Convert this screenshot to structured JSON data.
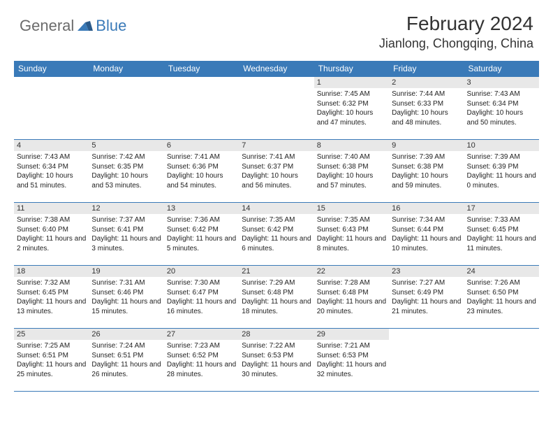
{
  "logo": {
    "text_general": "General",
    "text_blue": "Blue",
    "mark_color": "#3a7ab8"
  },
  "title": {
    "month_year": "February 2024",
    "location": "Jianlong, Chongqing, China"
  },
  "colors": {
    "header_bg": "#3a7ab8",
    "header_text": "#ffffff",
    "day_number_bg": "#e8e8e8",
    "border": "#3a7ab8",
    "body_text": "#222222",
    "title_text": "#333333"
  },
  "weekdays": [
    "Sunday",
    "Monday",
    "Tuesday",
    "Wednesday",
    "Thursday",
    "Friday",
    "Saturday"
  ],
  "weeks": [
    [
      null,
      null,
      null,
      null,
      {
        "d": "1",
        "sr": "7:45 AM",
        "ss": "6:32 PM",
        "dl": "10 hours and 47 minutes."
      },
      {
        "d": "2",
        "sr": "7:44 AM",
        "ss": "6:33 PM",
        "dl": "10 hours and 48 minutes."
      },
      {
        "d": "3",
        "sr": "7:43 AM",
        "ss": "6:34 PM",
        "dl": "10 hours and 50 minutes."
      }
    ],
    [
      {
        "d": "4",
        "sr": "7:43 AM",
        "ss": "6:34 PM",
        "dl": "10 hours and 51 minutes."
      },
      {
        "d": "5",
        "sr": "7:42 AM",
        "ss": "6:35 PM",
        "dl": "10 hours and 53 minutes."
      },
      {
        "d": "6",
        "sr": "7:41 AM",
        "ss": "6:36 PM",
        "dl": "10 hours and 54 minutes."
      },
      {
        "d": "7",
        "sr": "7:41 AM",
        "ss": "6:37 PM",
        "dl": "10 hours and 56 minutes."
      },
      {
        "d": "8",
        "sr": "7:40 AM",
        "ss": "6:38 PM",
        "dl": "10 hours and 57 minutes."
      },
      {
        "d": "9",
        "sr": "7:39 AM",
        "ss": "6:38 PM",
        "dl": "10 hours and 59 minutes."
      },
      {
        "d": "10",
        "sr": "7:39 AM",
        "ss": "6:39 PM",
        "dl": "11 hours and 0 minutes."
      }
    ],
    [
      {
        "d": "11",
        "sr": "7:38 AM",
        "ss": "6:40 PM",
        "dl": "11 hours and 2 minutes."
      },
      {
        "d": "12",
        "sr": "7:37 AM",
        "ss": "6:41 PM",
        "dl": "11 hours and 3 minutes."
      },
      {
        "d": "13",
        "sr": "7:36 AM",
        "ss": "6:42 PM",
        "dl": "11 hours and 5 minutes."
      },
      {
        "d": "14",
        "sr": "7:35 AM",
        "ss": "6:42 PM",
        "dl": "11 hours and 6 minutes."
      },
      {
        "d": "15",
        "sr": "7:35 AM",
        "ss": "6:43 PM",
        "dl": "11 hours and 8 minutes."
      },
      {
        "d": "16",
        "sr": "7:34 AM",
        "ss": "6:44 PM",
        "dl": "11 hours and 10 minutes."
      },
      {
        "d": "17",
        "sr": "7:33 AM",
        "ss": "6:45 PM",
        "dl": "11 hours and 11 minutes."
      }
    ],
    [
      {
        "d": "18",
        "sr": "7:32 AM",
        "ss": "6:45 PM",
        "dl": "11 hours and 13 minutes."
      },
      {
        "d": "19",
        "sr": "7:31 AM",
        "ss": "6:46 PM",
        "dl": "11 hours and 15 minutes."
      },
      {
        "d": "20",
        "sr": "7:30 AM",
        "ss": "6:47 PM",
        "dl": "11 hours and 16 minutes."
      },
      {
        "d": "21",
        "sr": "7:29 AM",
        "ss": "6:48 PM",
        "dl": "11 hours and 18 minutes."
      },
      {
        "d": "22",
        "sr": "7:28 AM",
        "ss": "6:48 PM",
        "dl": "11 hours and 20 minutes."
      },
      {
        "d": "23",
        "sr": "7:27 AM",
        "ss": "6:49 PM",
        "dl": "11 hours and 21 minutes."
      },
      {
        "d": "24",
        "sr": "7:26 AM",
        "ss": "6:50 PM",
        "dl": "11 hours and 23 minutes."
      }
    ],
    [
      {
        "d": "25",
        "sr": "7:25 AM",
        "ss": "6:51 PM",
        "dl": "11 hours and 25 minutes."
      },
      {
        "d": "26",
        "sr": "7:24 AM",
        "ss": "6:51 PM",
        "dl": "11 hours and 26 minutes."
      },
      {
        "d": "27",
        "sr": "7:23 AM",
        "ss": "6:52 PM",
        "dl": "11 hours and 28 minutes."
      },
      {
        "d": "28",
        "sr": "7:22 AM",
        "ss": "6:53 PM",
        "dl": "11 hours and 30 minutes."
      },
      {
        "d": "29",
        "sr": "7:21 AM",
        "ss": "6:53 PM",
        "dl": "11 hours and 32 minutes."
      },
      null,
      null
    ]
  ],
  "labels": {
    "sunrise": "Sunrise:",
    "sunset": "Sunset:",
    "daylight": "Daylight:"
  }
}
